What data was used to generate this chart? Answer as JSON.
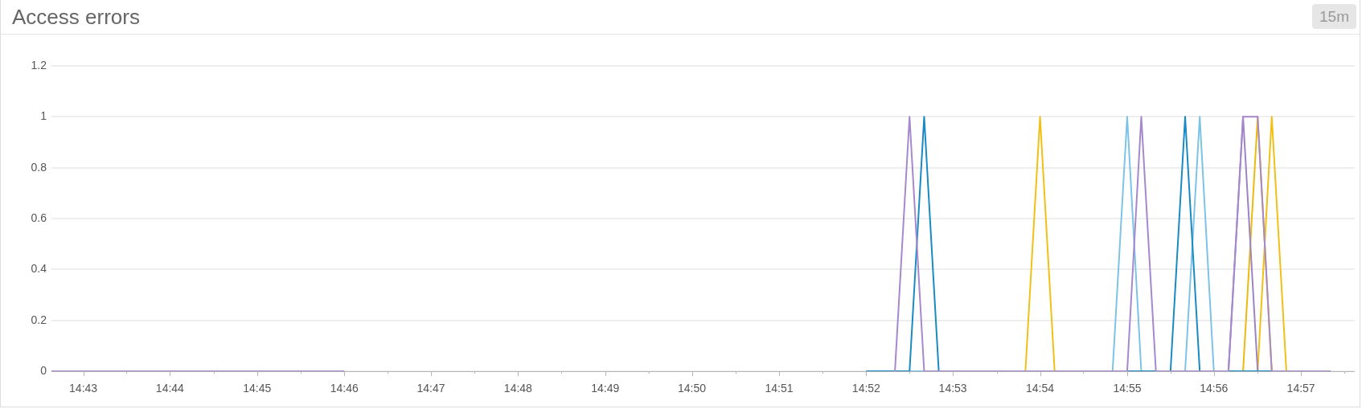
{
  "chart_data": {
    "type": "line",
    "title": "Access errors",
    "annotations": [
      "15m"
    ],
    "xlim": [
      14.7106,
      14.9603
    ],
    "xticks": [
      {
        "value": 14.7167,
        "label": "14:43"
      },
      {
        "value": 14.725,
        "label": null
      },
      {
        "value": 14.7333,
        "label": "14:44"
      },
      {
        "value": 14.7417,
        "label": null
      },
      {
        "value": 14.75,
        "label": "14:45"
      },
      {
        "value": 14.7583,
        "label": null
      },
      {
        "value": 14.7667,
        "label": "14:46"
      },
      {
        "value": 14.775,
        "label": null
      },
      {
        "value": 14.7833,
        "label": "14:47"
      },
      {
        "value": 14.7917,
        "label": null
      },
      {
        "value": 14.8,
        "label": "14:48"
      },
      {
        "value": 14.8083,
        "label": null
      },
      {
        "value": 14.8167,
        "label": "14:49"
      },
      {
        "value": 14.825,
        "label": null
      },
      {
        "value": 14.8333,
        "label": "14:50"
      },
      {
        "value": 14.8417,
        "label": null
      },
      {
        "value": 14.85,
        "label": "14:51"
      },
      {
        "value": 14.8583,
        "label": null
      },
      {
        "value": 14.8667,
        "label": "14:52"
      },
      {
        "value": 14.875,
        "label": null
      },
      {
        "value": 14.8833,
        "label": "14:53"
      },
      {
        "value": 14.8917,
        "label": null
      },
      {
        "value": 14.9,
        "label": "14:54"
      },
      {
        "value": 14.9083,
        "label": null
      },
      {
        "value": 14.9167,
        "label": "14:55"
      },
      {
        "value": 14.925,
        "label": null
      },
      {
        "value": 14.9333,
        "label": "14:56"
      },
      {
        "value": 14.9417,
        "label": null
      },
      {
        "value": 14.95,
        "label": "14:57"
      },
      {
        "value": 14.9583,
        "label": null
      }
    ],
    "ylim": [
      0,
      1.2
    ],
    "yticks": [
      0,
      0.2,
      0.4,
      0.6,
      0.8,
      1,
      1.2
    ],
    "grid": "y",
    "series": [
      {
        "color": "#ebb90f",
        "x": [
          14.9389,
          14.9417,
          14.9444
        ],
        "values": [
          0,
          1,
          0
        ]
      },
      {
        "color": "#f0c016",
        "x": [
          14.8667,
          14.8972,
          14.9,
          14.9028,
          14.9417,
          14.9444,
          14.9472,
          14.9556
        ],
        "values": [
          0,
          0,
          1,
          0,
          0,
          1,
          0,
          0
        ]
      },
      {
        "color": "#7dc3e6",
        "x": [
          14.8667,
          14.9139,
          14.9167,
          14.9194,
          14.9278,
          14.9306,
          14.9333,
          14.9556
        ],
        "values": [
          0,
          0,
          1,
          0,
          0,
          1,
          0,
          0
        ]
      },
      {
        "color": "#9c84c4",
        "x": [
          14.9361,
          14.9389,
          14.9417
        ],
        "values": [
          0,
          1,
          0
        ]
      },
      {
        "color": "#1a8ac4",
        "x": [
          14.8667,
          14.875,
          14.8778,
          14.8806,
          14.925,
          14.9278,
          14.9306,
          14.9556
        ],
        "values": [
          0,
          0,
          1,
          0,
          0,
          1,
          0,
          0
        ]
      },
      {
        "color": "#a689cc",
        "x": [
          14.7106,
          14.7667,
          14.8,
          14.8722,
          14.875,
          14.8778,
          14.9167,
          14.9194,
          14.9222,
          14.9361,
          14.9389,
          14.9417,
          14.9444,
          14.9556
        ],
        "values": [
          0,
          0,
          null,
          0,
          1,
          0,
          0,
          1,
          0,
          0,
          1,
          1,
          0,
          0
        ]
      }
    ]
  }
}
